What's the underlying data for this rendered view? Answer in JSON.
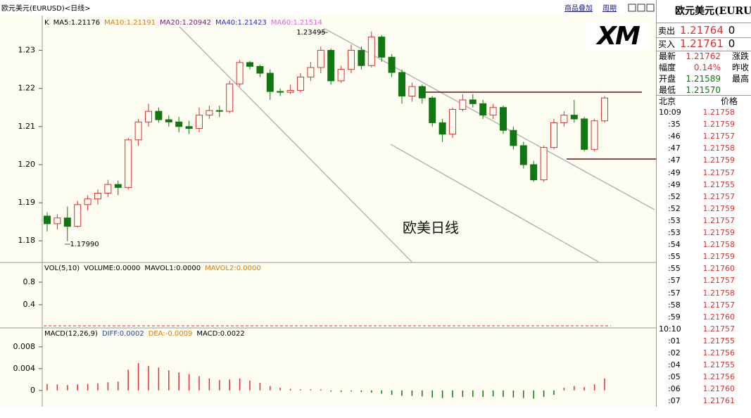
{
  "header": {
    "title": "欧元美元(EURUSD)<日线>",
    "links": [
      "商品叠加",
      "周期"
    ]
  },
  "price_chart": {
    "indicators": [
      {
        "text": "K",
        "color": "#000000"
      },
      {
        "text": "MA5:1.21176",
        "color": "#000000"
      },
      {
        "text": "MA10:1.21191",
        "color": "#e07b00"
      },
      {
        "text": "MA20:1.20942",
        "color": "#7a1e78"
      },
      {
        "text": "MA40:1.21423",
        "color": "#2b2bc8"
      },
      {
        "text": "MA60:1.21514",
        "color": "#e060e0"
      }
    ],
    "ylim": [
      1.1745,
      1.2386
    ],
    "yticks": [
      1.23,
      1.22,
      1.21,
      {
        "value": 1.2,
        "label": "1.20"
      },
      1.19,
      1.18
    ],
    "high_label": "1.23495",
    "low_label": "1.17990",
    "watermark": "欧美日线",
    "up_color": "#e03030",
    "down_color": "#117711",
    "candles": [
      [
        1.1865,
        1.1875,
        1.1825,
        1.1845
      ],
      [
        1.1845,
        1.187,
        1.183,
        1.186
      ],
      [
        1.186,
        1.189,
        1.1799,
        1.1838
      ],
      [
        1.1838,
        1.1905,
        1.1835,
        1.1895
      ],
      [
        1.1895,
        1.192,
        1.188,
        1.191
      ],
      [
        1.191,
        1.1935,
        1.1895,
        1.1925
      ],
      [
        1.1925,
        1.196,
        1.1915,
        1.1948
      ],
      [
        1.1948,
        1.1958,
        1.192,
        1.194
      ],
      [
        1.194,
        1.207,
        1.1935,
        1.2065
      ],
      [
        1.2065,
        1.212,
        1.205,
        1.2112
      ],
      [
        1.2112,
        1.216,
        1.21,
        1.214
      ],
      [
        1.214,
        1.215,
        1.211,
        1.2118
      ],
      [
        1.2118,
        1.213,
        1.21,
        1.2112
      ],
      [
        1.2112,
        1.2125,
        1.2085,
        1.21
      ],
      [
        1.21,
        1.2115,
        1.208,
        1.2095
      ],
      [
        1.2095,
        1.215,
        1.2085,
        1.213
      ],
      [
        1.213,
        1.2155,
        1.212,
        1.2142
      ],
      [
        1.2142,
        1.2155,
        1.2125,
        1.214
      ],
      [
        1.214,
        1.222,
        1.2135,
        1.2212
      ],
      [
        1.2212,
        1.2275,
        1.2205,
        1.2268
      ],
      [
        1.2268,
        1.2272,
        1.225,
        1.2258
      ],
      [
        1.2258,
        1.2262,
        1.223,
        1.224
      ],
      [
        1.224,
        1.225,
        1.217,
        1.2192
      ],
      [
        1.2192,
        1.22,
        1.218,
        1.219
      ],
      [
        1.219,
        1.221,
        1.2185,
        1.2195
      ],
      [
        1.2195,
        1.224,
        1.219,
        1.223
      ],
      [
        1.223,
        1.227,
        1.222,
        1.2255
      ],
      [
        1.2255,
        1.231,
        1.224,
        1.23
      ],
      [
        1.23,
        1.2305,
        1.221,
        1.222
      ],
      [
        1.222,
        1.226,
        1.2215,
        1.225
      ],
      [
        1.225,
        1.2315,
        1.224,
        1.23
      ],
      [
        1.23,
        1.231,
        1.225,
        1.226
      ],
      [
        1.226,
        1.23495,
        1.2255,
        1.2335
      ],
      [
        1.2335,
        1.234,
        1.227,
        1.2282
      ],
      [
        1.2282,
        1.229,
        1.223,
        1.2242
      ],
      [
        1.2242,
        1.225,
        1.216,
        1.218
      ],
      [
        1.218,
        1.2215,
        1.2165,
        1.2205
      ],
      [
        1.2205,
        1.221,
        1.216,
        1.2175
      ],
      [
        1.2175,
        1.218,
        1.21,
        1.211
      ],
      [
        1.211,
        1.212,
        1.206,
        1.208
      ],
      [
        1.208,
        1.215,
        1.207,
        1.2145
      ],
      [
        1.2145,
        1.2185,
        1.214,
        1.217
      ],
      [
        1.217,
        1.2185,
        1.215,
        1.216
      ],
      [
        1.216,
        1.217,
        1.212,
        1.213
      ],
      [
        1.213,
        1.216,
        1.212,
        1.215
      ],
      [
        1.215,
        1.2155,
        1.208,
        1.209
      ],
      [
        1.209,
        1.21,
        1.204,
        1.205
      ],
      [
        1.205,
        1.206,
        1.199,
        1.2
      ],
      [
        1.2,
        1.201,
        1.1955,
        1.196
      ],
      [
        1.196,
        1.205,
        1.1955,
        1.2045
      ],
      [
        1.2045,
        1.212,
        1.204,
        1.211
      ],
      [
        1.211,
        1.214,
        1.21,
        1.213
      ],
      [
        1.213,
        1.217,
        1.211,
        1.212
      ],
      [
        1.212,
        1.2125,
        1.2035,
        1.204
      ],
      [
        1.204,
        1.212,
        1.2035,
        1.2115
      ],
      [
        1.2115,
        1.218,
        1.211,
        1.2175
      ]
    ]
  },
  "volume_chart": {
    "indicators": [
      {
        "text": "VOL(5,10)",
        "color": "#000000"
      },
      {
        "text": "VOLUME:0.0000",
        "color": "#000000"
      },
      {
        "text": "MAVOL1:0.0000",
        "color": "#000000"
      },
      {
        "text": "MAVOL2:0.0000",
        "color": "#e07b00"
      }
    ],
    "ylim": [
      0,
      1.15
    ],
    "yticks": [
      0.8,
      0.4
    ]
  },
  "macd_chart": {
    "indicators": [
      {
        "text": "MACD(12,26,9)",
        "color": "#000000"
      },
      {
        "text": "DIFF:0.0002",
        "color": "#2b4a8b"
      },
      {
        "text": "DEA:-0.0009",
        "color": "#e07b00"
      },
      {
        "text": "MACD:0.0022",
        "color": "#000000"
      }
    ],
    "ylim": [
      -0.0026,
      0.0112
    ],
    "yticks": [
      0.008,
      0.004,
      0
    ],
    "values": [
      0.0012,
      0.0011,
      0.001,
      0.0011,
      0.0012,
      0.0013,
      0.0015,
      0.0016,
      0.0038,
      0.005,
      0.0045,
      0.0042,
      0.0037,
      0.0033,
      0.003,
      0.0026,
      0.0022,
      0.0019,
      0.002,
      0.0022,
      0.0018,
      0.0014,
      0.0008,
      0.0005,
      0.0003,
      0.0002,
      0.0002,
      0.0002,
      -0.0002,
      -0.0003,
      -0.0002,
      -0.0003,
      -0.0004,
      -0.0006,
      -0.0008,
      -0.001,
      -0.001,
      -0.0011,
      -0.0013,
      -0.0014,
      -0.0013,
      -0.0012,
      -0.0012,
      -0.0012,
      -0.0011,
      -0.0012,
      -0.0013,
      -0.0014,
      -0.0015,
      -0.0012,
      -0.0008,
      0.0005,
      0.0008,
      0.0006,
      0.0011,
      0.0022
    ]
  },
  "quote_panel": {
    "title": "欧元美元(EURUS",
    "logo": "XM",
    "sell": {
      "label": "卖出",
      "price": "1.21764",
      "size": "0"
    },
    "buy": {
      "label": "买入",
      "price": "1.21761",
      "size": "0"
    },
    "stats": [
      [
        "最新",
        "1.21762",
        "涨跌"
      ],
      [
        "幅度",
        "0.14%",
        "昨收"
      ],
      [
        "开盘",
        "1.21589",
        "最高"
      ],
      [
        "最低",
        "1.21570"
      ]
    ],
    "stat_colors": [
      "#e03030",
      "#e03030",
      "#117711",
      "#117711"
    ],
    "ticks_header": [
      "北京",
      "价格"
    ],
    "ticks": [
      [
        "10:09",
        "1.21758"
      ],
      [
        ":35",
        "1.21759"
      ],
      [
        ":46",
        "1.21757"
      ],
      [
        ":47",
        "1.21758"
      ],
      [
        ":47",
        "1.21759"
      ],
      [
        ":49",
        "1.21757"
      ],
      [
        ":49",
        "1.21755"
      ],
      [
        ":52",
        "1.21757"
      ],
      [
        ":52",
        "1.21759"
      ],
      [
        ":53",
        "1.21757"
      ],
      [
        ":53",
        "1.21759"
      ],
      [
        ":54",
        "1.21758"
      ],
      [
        ":55",
        "1.21759"
      ],
      [
        ":55",
        "1.21760"
      ],
      [
        ":57",
        "1.21757"
      ],
      [
        ":57",
        "1.21758"
      ],
      [
        ":58",
        "1.21757"
      ],
      [
        ":59",
        "1.21760"
      ],
      [
        "10:10",
        "1.21757"
      ],
      [
        ":01",
        "1.21755"
      ],
      [
        ":02",
        "1.21756"
      ],
      [
        ":04",
        "1.21755"
      ],
      [
        ":05",
        "1.21756"
      ],
      [
        ":06",
        "1.21760"
      ],
      [
        ":07",
        "1.21761"
      ]
    ]
  }
}
